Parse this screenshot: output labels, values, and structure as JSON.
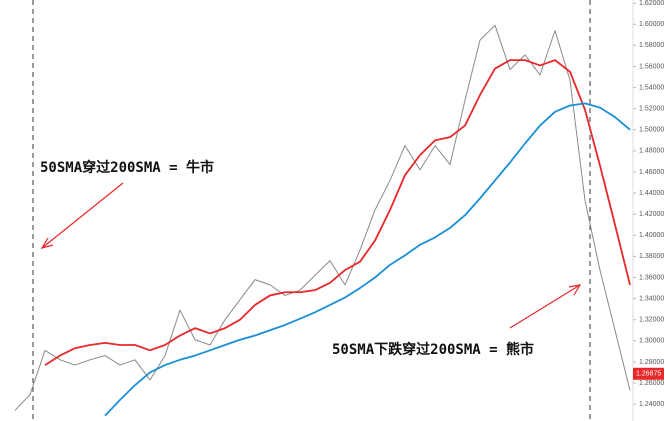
{
  "chart_data": {
    "type": "line",
    "annotations": [
      "50SMA穿过200SMA = 牛市",
      "50SMA下跌穿过200SMA = 熊市"
    ],
    "categories": [
      null,
      null,
      null,
      null,
      null,
      null,
      null,
      null,
      null,
      null,
      null,
      null,
      null,
      null,
      null,
      null,
      null,
      null,
      null,
      null,
      null,
      null,
      null,
      null,
      null,
      null,
      null,
      null,
      null,
      null,
      null,
      null,
      null,
      null,
      null,
      null,
      null,
      null,
      null,
      null,
      null,
      null
    ],
    "series": [
      {
        "color": "#8a8a8a",
        "values": [
          1.234,
          1.249,
          1.291,
          1.282,
          1.277,
          1.282,
          1.286,
          1.277,
          1.282,
          1.263,
          1.286,
          1.329,
          1.301,
          1.296,
          1.32,
          1.339,
          1.358,
          1.353,
          1.343,
          1.348,
          1.362,
          1.376,
          1.353,
          1.386,
          1.424,
          1.452,
          1.485,
          1.462,
          1.485,
          1.467,
          1.528,
          1.585,
          1.599,
          1.557,
          1.571,
          1.552,
          1.594,
          1.547,
          1.433,
          1.367,
          1.31,
          1.253
        ]
      },
      {
        "color": "#e8282b",
        "values": [
          null,
          null,
          1.277,
          1.286,
          1.293,
          1.296,
          1.298,
          1.296,
          1.296,
          1.291,
          1.296,
          1.305,
          1.312,
          1.307,
          1.312,
          1.32,
          1.334,
          1.343,
          1.346,
          1.346,
          1.348,
          1.355,
          1.367,
          1.375,
          1.395,
          1.424,
          1.457,
          1.476,
          1.49,
          1.493,
          1.504,
          1.533,
          1.558,
          1.566,
          1.566,
          1.561,
          1.566,
          1.555,
          1.519,
          1.466,
          1.41,
          1.353
        ]
      },
      {
        "color": "#1a8fd6",
        "values": [
          null,
          null,
          null,
          null,
          null,
          null,
          1.229,
          1.244,
          1.258,
          1.27,
          1.277,
          1.282,
          1.286,
          1.291,
          1.296,
          1.301,
          1.305,
          1.31,
          1.315,
          1.321,
          1.327,
          1.334,
          1.341,
          1.35,
          1.36,
          1.372,
          1.381,
          1.391,
          1.398,
          1.407,
          1.419,
          1.435,
          1.452,
          1.469,
          1.487,
          1.504,
          1.517,
          1.523,
          1.525,
          1.521,
          1.512,
          1.5
        ]
      }
    ],
    "ylim": [
      1.224,
      1.623
    ],
    "yticks": [
      {
        "value": 1.24,
        "label": "1.24000"
      },
      {
        "value": 1.26,
        "label": "1.26000"
      },
      {
        "value": 1.28,
        "label": "1.28000"
      },
      {
        "value": 1.3,
        "label": "1.30000"
      },
      {
        "value": 1.32,
        "label": "1.32000"
      },
      {
        "value": 1.34,
        "label": "1.34000"
      },
      {
        "value": 1.36,
        "label": "1.36000"
      },
      {
        "value": 1.38,
        "label": "1.38000"
      },
      {
        "value": 1.4,
        "label": "1.40000"
      },
      {
        "value": 1.42,
        "label": "1.42000"
      },
      {
        "value": 1.44,
        "label": "1.44000"
      },
      {
        "value": 1.46,
        "label": "1.46000"
      },
      {
        "value": 1.48,
        "label": "1.48000"
      },
      {
        "value": 1.5,
        "label": "1.50000"
      },
      {
        "value": 1.52,
        "label": "1.52000"
      },
      {
        "value": 1.54,
        "label": "1.54000"
      },
      {
        "value": 1.56,
        "label": "1.56000"
      },
      {
        "value": 1.58,
        "label": "1.58000"
      },
      {
        "value": 1.6,
        "label": "1.60000"
      },
      {
        "value": 1.62,
        "label": "1.62000"
      }
    ],
    "current_price": {
      "value": 1.26875,
      "label": "1.26875",
      "color": "#e8282b"
    }
  }
}
